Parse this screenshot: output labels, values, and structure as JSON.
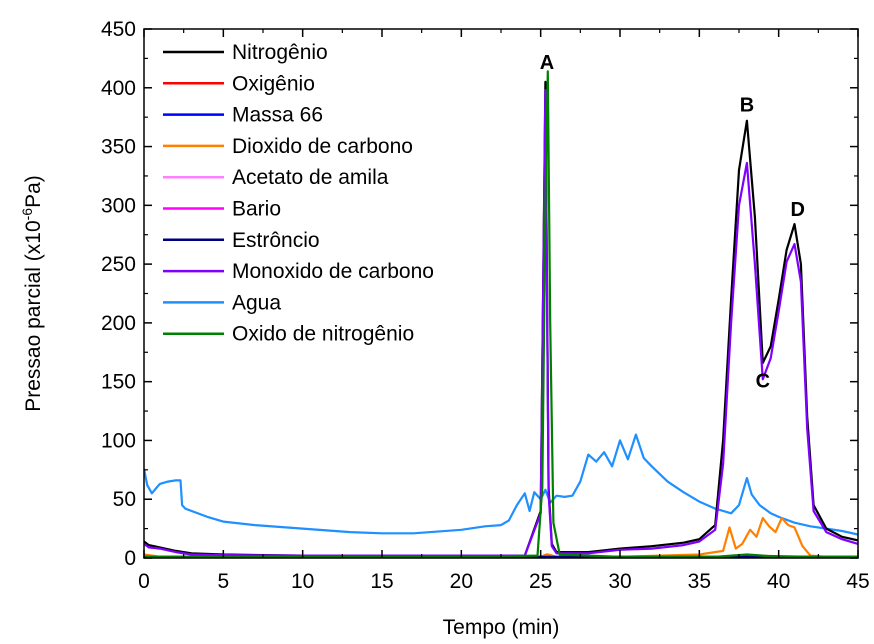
{
  "chart_data": {
    "type": "line",
    "xlabel": "Tempo (min)",
    "ylabel_main": "Pressao parcial (x10",
    "ylabel_sup": "-6",
    "ylabel_end": "Pa)",
    "xlim": [
      0,
      45
    ],
    "ylim": [
      0,
      450
    ],
    "xticks": [
      0,
      5,
      10,
      15,
      20,
      25,
      30,
      35,
      40,
      45
    ],
    "yticks": [
      0,
      50,
      100,
      150,
      200,
      250,
      300,
      350,
      400,
      450
    ],
    "grid": false,
    "legend_position": "top-left",
    "annotations": [
      {
        "text": "A",
        "x": 25.4,
        "y": 416
      },
      {
        "text": "B",
        "x": 38.0,
        "y": 380
      },
      {
        "text": "C",
        "x": 39.0,
        "y": 145
      },
      {
        "text": "D",
        "x": 41.2,
        "y": 291
      }
    ],
    "series": [
      {
        "name": "Nitrogênio",
        "color": "#000000",
        "x": [
          0,
          0.3,
          1,
          2,
          3,
          5,
          10,
          15,
          20,
          24,
          25.0,
          25.3,
          25.5,
          25.7,
          26,
          28,
          30,
          32,
          34,
          35,
          36,
          36.5,
          37,
          37.5,
          38.0,
          38.5,
          39.0,
          39.5,
          40,
          40.5,
          41.0,
          41.4,
          41.8,
          42.2,
          43,
          44,
          45
        ],
        "y": [
          14,
          11,
          9,
          6,
          4,
          3,
          2,
          2,
          2,
          2,
          40,
          405,
          60,
          12,
          5,
          5,
          8,
          10,
          13,
          16,
          28,
          100,
          220,
          330,
          372,
          290,
          166,
          180,
          220,
          262,
          284,
          250,
          120,
          45,
          25,
          18,
          15
        ]
      },
      {
        "name": "Oxigênio",
        "color": "#ff0000",
        "x": [
          0,
          10,
          25.0,
          25.4,
          25.8,
          30,
          36,
          38,
          40,
          42,
          45
        ],
        "y": [
          1,
          1,
          1,
          3,
          1,
          1,
          1,
          2,
          1.5,
          1,
          1
        ]
      },
      {
        "name": "Massa 66",
        "color": "#0000ff",
        "x": [
          0,
          10,
          25.0,
          25.4,
          25.8,
          30,
          45
        ],
        "y": [
          0.5,
          0.5,
          0.5,
          2,
          0.5,
          0.5,
          0.5
        ]
      },
      {
        "name": "Dioxido de carbono",
        "color": "#ff8000",
        "x": [
          0,
          0.5,
          1,
          2,
          5,
          10,
          20,
          25,
          25.5,
          26,
          30,
          35,
          36.5,
          36.9,
          37.3,
          37.7,
          38.2,
          38.6,
          39.0,
          39.4,
          39.8,
          40.2,
          40.6,
          41.0,
          41.5,
          42,
          43,
          45
        ],
        "y": [
          3,
          2,
          1,
          0.5,
          0.5,
          0.5,
          0.5,
          1,
          3,
          1,
          1,
          3,
          6,
          26,
          8,
          12,
          24,
          18,
          34,
          27,
          22,
          34,
          28,
          26,
          10,
          2,
          1,
          1
        ]
      },
      {
        "name": "Acetato de amila",
        "color": "#ff80ff",
        "x": [
          0,
          45
        ],
        "y": [
          0.3,
          0.3
        ]
      },
      {
        "name": "Bario",
        "color": "#ff00ff",
        "x": [
          0,
          45
        ],
        "y": [
          0.6,
          0.6
        ]
      },
      {
        "name": "Estrôncio",
        "color": "#000080",
        "x": [
          0,
          45
        ],
        "y": [
          0.9,
          0.9
        ]
      },
      {
        "name": "Monoxido de carbono",
        "color": "#8000ff",
        "x": [
          0,
          0.3,
          1,
          2,
          3,
          5,
          10,
          15,
          20,
          24,
          25.0,
          25.3,
          25.5,
          25.7,
          26,
          28,
          30,
          32,
          34,
          35,
          36,
          36.5,
          37,
          37.5,
          38.0,
          38.5,
          39.0,
          39.5,
          40,
          40.5,
          41.0,
          41.4,
          41.8,
          42.2,
          43,
          44,
          45
        ],
        "y": [
          12,
          9,
          8,
          5,
          3,
          2.5,
          2,
          2,
          2,
          2,
          38,
          398,
          55,
          10,
          4,
          4,
          7,
          8,
          11,
          14,
          24,
          80,
          200,
          300,
          336,
          250,
          152,
          170,
          210,
          252,
          267,
          235,
          110,
          40,
          22,
          16,
          12
        ]
      },
      {
        "name": "Agua",
        "color": "#1e90ff",
        "x": [
          0,
          0.2,
          0.5,
          0.8,
          1.0,
          1.5,
          2.0,
          2.3,
          2.4,
          2.6,
          3,
          4,
          5,
          7,
          10,
          13,
          15,
          17,
          20,
          21.5,
          22.5,
          23.0,
          23.5,
          24.0,
          24.3,
          24.6,
          25.0,
          25.3,
          25.6,
          26.0,
          26.5,
          27.0,
          27.5,
          28.0,
          28.5,
          29.0,
          29.5,
          30.0,
          30.5,
          31.0,
          31.5,
          32.0,
          33,
          34,
          35,
          36,
          37,
          37.5,
          38.0,
          38.3,
          38.8,
          39.5,
          40,
          41,
          42,
          43,
          44,
          45
        ],
        "y": [
          76,
          62,
          55,
          60,
          63,
          65,
          66,
          66,
          45,
          42,
          40,
          35,
          31,
          28,
          25,
          22,
          21,
          21,
          24,
          27,
          28,
          32,
          45,
          55,
          40,
          56,
          50,
          58,
          47,
          53,
          52,
          53,
          65,
          88,
          82,
          90,
          78,
          100,
          84,
          105,
          85,
          78,
          65,
          56,
          48,
          42,
          38,
          45,
          68,
          54,
          45,
          38,
          35,
          30,
          27,
          25,
          23,
          20
        ]
      },
      {
        "name": "Oxido de nitrogênio",
        "color": "#008000",
        "x": [
          0,
          10,
          20,
          24.8,
          25.1,
          25.3,
          25.45,
          25.6,
          25.8,
          26.2,
          30,
          36,
          38,
          40,
          45
        ],
        "y": [
          1,
          1,
          1,
          2,
          60,
          300,
          414,
          200,
          30,
          3,
          1,
          1,
          3,
          1,
          1
        ]
      }
    ]
  }
}
